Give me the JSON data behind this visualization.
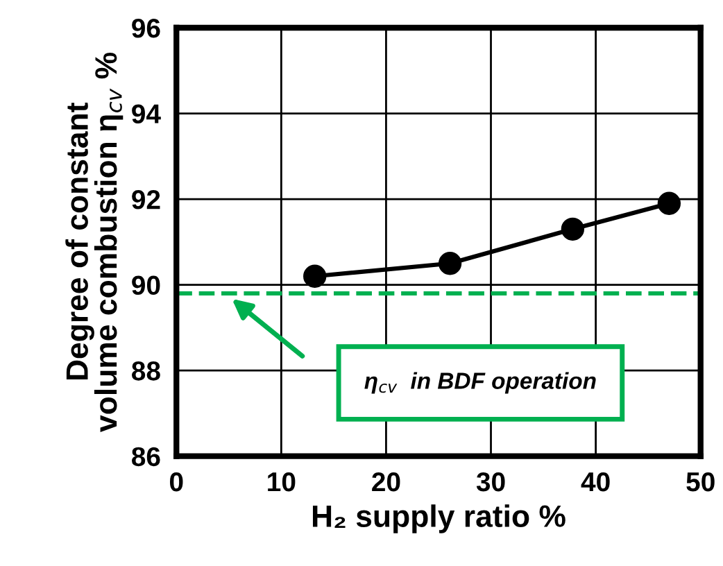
{
  "chart_data": {
    "type": "line",
    "xlabel": "H₂ supply ratio %",
    "ylabel": "Degree of constant\nvolume combustion η$_{cv}$ %",
    "x": [
      13.2,
      26.1,
      37.8,
      47.0
    ],
    "series": [
      {
        "color": "#000000",
        "values": [
          90.2,
          90.5,
          91.3,
          91.9
        ]
      }
    ],
    "xlim": [
      0,
      50
    ],
    "xticks": [
      0,
      10,
      20,
      30,
      40,
      50
    ],
    "ylim": [
      86,
      96
    ],
    "yticks": [
      86,
      88,
      90,
      92,
      94,
      96
    ],
    "grid": true,
    "marker": "circle",
    "line_style": "solid",
    "legend": false,
    "ref_lines": [
      {
        "axis": "y",
        "value": 89.8,
        "color": "#00b050",
        "line_style": "dashed"
      }
    ],
    "annotations": [
      "η$_{cv}$  in BDF operation"
    ]
  }
}
